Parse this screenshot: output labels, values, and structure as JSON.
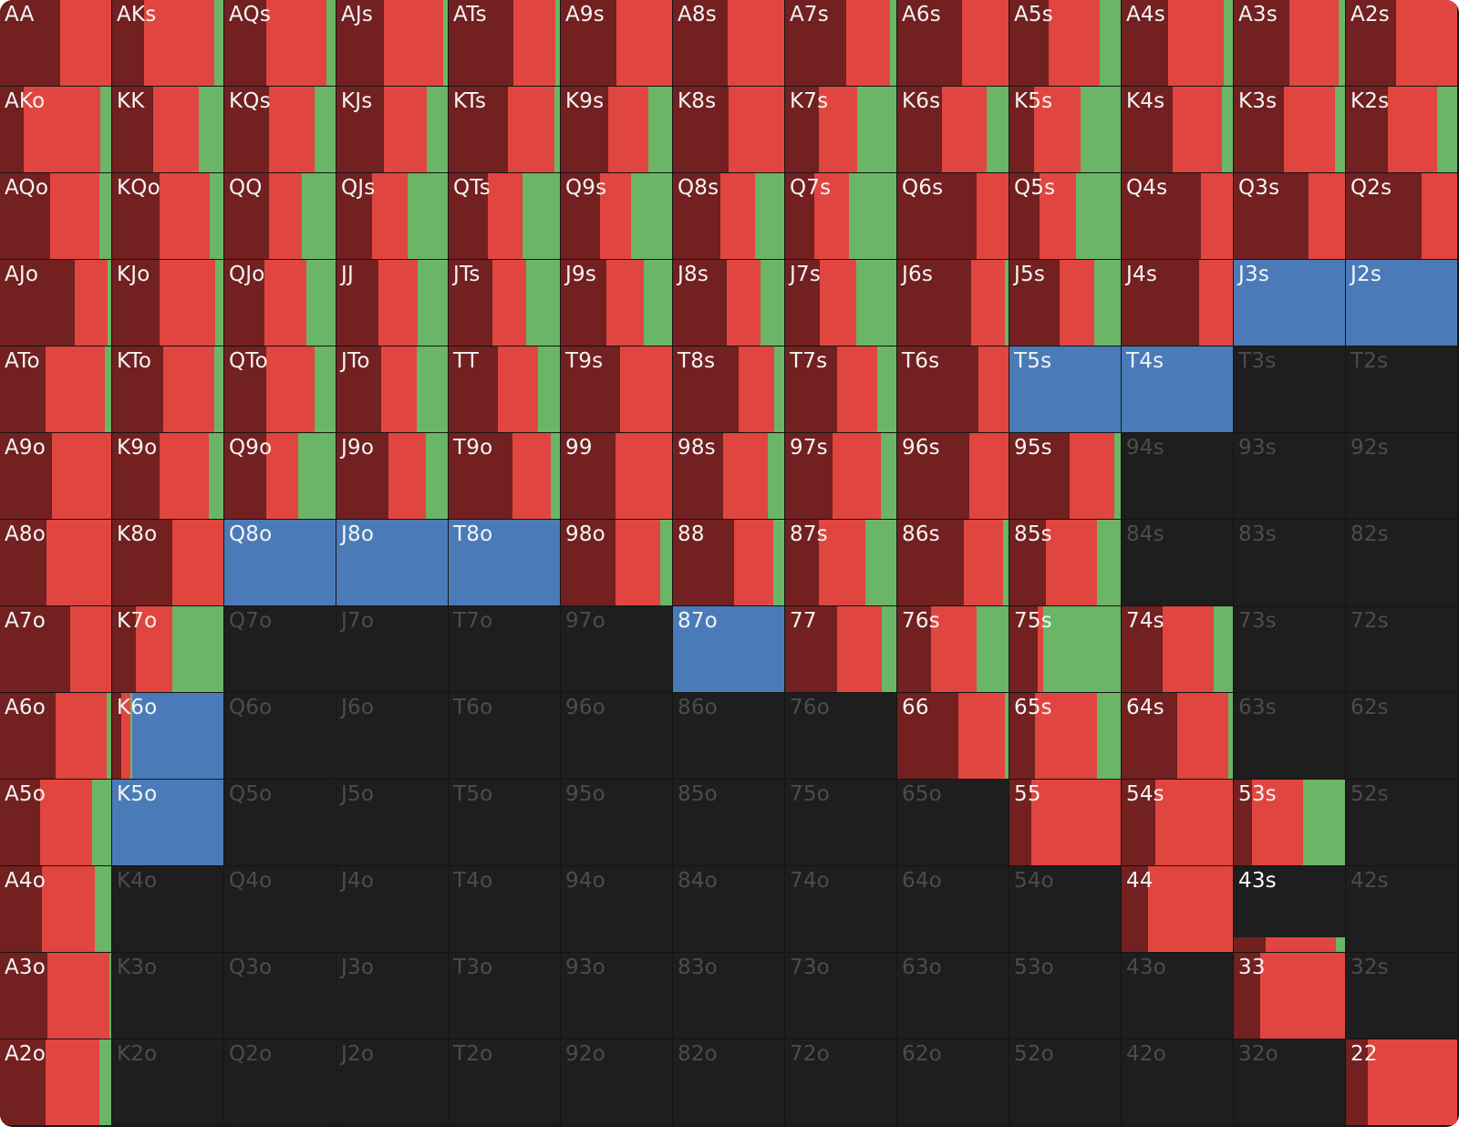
{
  "colors": {
    "fold": "#722020",
    "call": "#e0463f",
    "raise": "#6ab567",
    "selected": "#4a7bb8",
    "empty": "#1e1e1e"
  },
  "grid": {
    "rows": [
      [
        "AA",
        "AKs",
        "AQs",
        "AJs",
        "ATs",
        "A9s",
        "A8s",
        "A7s",
        "A6s",
        "A5s",
        "A4s",
        "A3s",
        "A2s"
      ],
      [
        "AKo",
        "KK",
        "KQs",
        "KJs",
        "KTs",
        "K9s",
        "K8s",
        "K7s",
        "K6s",
        "K5s",
        "K4s",
        "K3s",
        "K2s"
      ],
      [
        "AQo",
        "KQo",
        "QQ",
        "QJs",
        "QTs",
        "Q9s",
        "Q8s",
        "Q7s",
        "Q6s",
        "Q5s",
        "Q4s",
        "Q3s",
        "Q2s"
      ],
      [
        "AJo",
        "KJo",
        "QJo",
        "JJ",
        "JTs",
        "J9s",
        "J8s",
        "J7s",
        "J6s",
        "J5s",
        "J4s",
        "J3s",
        "J2s"
      ],
      [
        "ATo",
        "KTo",
        "QTo",
        "JTo",
        "TT",
        "T9s",
        "T8s",
        "T7s",
        "T6s",
        "T5s",
        "T4s",
        "T3s",
        "T2s"
      ],
      [
        "A9o",
        "K9o",
        "Q9o",
        "J9o",
        "T9o",
        "99",
        "98s",
        "97s",
        "96s",
        "95s",
        "94s",
        "93s",
        "92s"
      ],
      [
        "A8o",
        "K8o",
        "Q8o",
        "J8o",
        "T8o",
        "98o",
        "88",
        "87s",
        "86s",
        "85s",
        "84s",
        "83s",
        "82s"
      ],
      [
        "A7o",
        "K7o",
        "Q7o",
        "J7o",
        "T7o",
        "97o",
        "87o",
        "77",
        "76s",
        "75s",
        "74s",
        "73s",
        "72s"
      ],
      [
        "A6o",
        "K6o",
        "Q6o",
        "J6o",
        "T6o",
        "96o",
        "86o",
        "76o",
        "66",
        "65s",
        "64s",
        "63s",
        "62s"
      ],
      [
        "A5o",
        "K5o",
        "Q5o",
        "J5o",
        "T5o",
        "95o",
        "85o",
        "75o",
        "65o",
        "55",
        "54s",
        "53s",
        "52s"
      ],
      [
        "A4o",
        "K4o",
        "Q4o",
        "J4o",
        "T4o",
        "94o",
        "84o",
        "74o",
        "64o",
        "54o",
        "44",
        "43s",
        "42s"
      ],
      [
        "A3o",
        "K3o",
        "Q3o",
        "J3o",
        "T3o",
        "93o",
        "83o",
        "73o",
        "63o",
        "53o",
        "43o",
        "33",
        "32s"
      ],
      [
        "A2o",
        "K2o",
        "Q2o",
        "J2o",
        "T2o",
        "92o",
        "82o",
        "72o",
        "62o",
        "52o",
        "42o",
        "32o",
        "22"
      ]
    ],
    "frequencies": {
      "AA": [
        0.54,
        0.46,
        0
      ],
      "AKs": [
        0.29,
        0.63,
        0.08
      ],
      "AQs": [
        0.38,
        0.54,
        0.08
      ],
      "AJs": [
        0.43,
        0.53,
        0.04
      ],
      "ATs": [
        0.58,
        0.38,
        0.04
      ],
      "A9s": [
        0.5,
        0.5,
        0
      ],
      "A8s": [
        0.49,
        0.51,
        0
      ],
      "A7s": [
        0.55,
        0.39,
        0.06
      ],
      "A6s": [
        0.58,
        0.42,
        0
      ],
      "A5s": [
        0.35,
        0.46,
        0.19
      ],
      "A4s": [
        0.42,
        0.5,
        0.08
      ],
      "A3s": [
        0.5,
        0.44,
        0.06
      ],
      "A2s": [
        0.45,
        0.55,
        0
      ],
      "AKo": [
        0.21,
        0.69,
        0.1
      ],
      "KK": [
        0.37,
        0.41,
        0.22
      ],
      "KQs": [
        0.4,
        0.41,
        0.19
      ],
      "KJs": [
        0.43,
        0.38,
        0.19
      ],
      "KTs": [
        0.53,
        0.42,
        0.05
      ],
      "K9s": [
        0.43,
        0.36,
        0.21
      ],
      "K8s": [
        0.5,
        0.5,
        0
      ],
      "K7s": [
        0.3,
        0.35,
        0.35
      ],
      "K6s": [
        0.4,
        0.4,
        0.2
      ],
      "K5s": [
        0.22,
        0.42,
        0.36
      ],
      "K4s": [
        0.46,
        0.44,
        0.1
      ],
      "K3s": [
        0.45,
        0.46,
        0.09
      ],
      "K2s": [
        0.38,
        0.44,
        0.18
      ],
      "AQo": [
        0.45,
        0.44,
        0.11
      ],
      "KQo": [
        0.43,
        0.45,
        0.12
      ],
      "QQ": [
        0.4,
        0.3,
        0.3
      ],
      "QJs": [
        0.32,
        0.32,
        0.36
      ],
      "QTs": [
        0.35,
        0.31,
        0.34
      ],
      "Q9s": [
        0.35,
        0.28,
        0.37
      ],
      "Q8s": [
        0.43,
        0.31,
        0.26
      ],
      "Q7s": [
        0.26,
        0.31,
        0.43
      ],
      "Q6s": [
        0.71,
        0.29,
        0
      ],
      "Q5s": [
        0.27,
        0.33,
        0.4
      ],
      "Q4s": [
        0.71,
        0.29,
        0
      ],
      "Q3s": [
        0.67,
        0.33,
        0
      ],
      "Q2s": [
        0.68,
        0.32,
        0
      ],
      "AJo": [
        0.67,
        0.3,
        0.03
      ],
      "KJo": [
        0.43,
        0.5,
        0.07
      ],
      "QJo": [
        0.36,
        0.38,
        0.26
      ],
      "JJ": [
        0.38,
        0.35,
        0.27
      ],
      "JTs": [
        0.39,
        0.31,
        0.3
      ],
      "J9s": [
        0.41,
        0.34,
        0.25
      ],
      "J8s": [
        0.48,
        0.31,
        0.21
      ],
      "J7s": [
        0.31,
        0.33,
        0.36
      ],
      "J6s": [
        0.66,
        0.31,
        0.03
      ],
      "J5s": [
        0.45,
        0.31,
        0.24
      ],
      "J4s": [
        0.7,
        0.3,
        0
      ],
      "J3s": null,
      "J2s": null,
      "ATo": [
        0.41,
        0.53,
        0.06
      ],
      "KTo": [
        0.46,
        0.46,
        0.08
      ],
      "QTo": [
        0.38,
        0.43,
        0.19
      ],
      "JTo": [
        0.4,
        0.32,
        0.28
      ],
      "TT": [
        0.44,
        0.36,
        0.2
      ],
      "T9s": [
        0.53,
        0.47,
        0
      ],
      "T8s": [
        0.59,
        0.32,
        0.09
      ],
      "T7s": [
        0.47,
        0.36,
        0.17
      ],
      "T6s": [
        0.73,
        0.27,
        0
      ],
      "T5s": null,
      "T4s": null,
      "T3s": null,
      "T2s": null,
      "A9o": [
        0.47,
        0.53,
        0
      ],
      "K9o": [
        0.43,
        0.44,
        0.13
      ],
      "Q9o": [
        0.38,
        0.28,
        0.34
      ],
      "J9o": [
        0.47,
        0.33,
        0.2
      ],
      "T9o": [
        0.57,
        0.35,
        0.08
      ],
      "99": [
        0.49,
        0.51,
        0
      ],
      "98s": [
        0.45,
        0.4,
        0.15
      ],
      "97s": [
        0.43,
        0.43,
        0.14
      ],
      "96s": [
        0.65,
        0.35,
        0
      ],
      "95s": [
        0.54,
        0.4,
        0.06
      ],
      "94s": null,
      "93s": null,
      "92s": null,
      "A8o": [
        0.42,
        0.58,
        0
      ],
      "K8o": [
        0.54,
        0.46,
        0
      ],
      "Q8o": null,
      "J8o": null,
      "T8o": null,
      "98o": [
        0.49,
        0.4,
        0.11
      ],
      "88": [
        0.55,
        0.35,
        0.1
      ],
      "87s": [
        0.3,
        0.42,
        0.28
      ],
      "86s": [
        0.6,
        0.35,
        0.05
      ],
      "85s": [
        0.33,
        0.46,
        0.21
      ],
      "84s": null,
      "83s": null,
      "82s": null,
      "A7o": [
        0.63,
        0.37,
        0
      ],
      "K7o": [
        0.21,
        0.33,
        0.46
      ],
      "Q7o": null,
      "J7o": null,
      "T7o": null,
      "97o": null,
      "87o": null,
      "77": [
        0.47,
        0.4,
        0.13
      ],
      "76s": [
        0.3,
        0.41,
        0.29
      ],
      "75s": [
        0.25,
        0.05,
        0.7
      ],
      "74s": [
        0.37,
        0.46,
        0.17
      ],
      "73s": null,
      "72s": null,
      "A6o": [
        0.5,
        0.46,
        0.04
      ],
      "K6o": null,
      "Q6o": null,
      "J6o": null,
      "T6o": null,
      "96o": null,
      "86o": null,
      "76o": null,
      "66": [
        0.55,
        0.42,
        0.03
      ],
      "65s": [
        0.23,
        0.56,
        0.21
      ],
      "64s": [
        0.5,
        0.46,
        0.04
      ],
      "63s": null,
      "62s": null,
      "A5o": [
        0.36,
        0.47,
        0.17
      ],
      "K5o": null,
      "Q5o": null,
      "J5o": null,
      "T5o": null,
      "95o": null,
      "85o": null,
      "75o": null,
      "65o": null,
      "55": [
        0.2,
        0.8,
        0
      ],
      "54s": [
        0.3,
        0.7,
        0
      ],
      "53s": [
        0.16,
        0.46,
        0.38
      ],
      "52s": null,
      "A4o": [
        0.38,
        0.47,
        0.15
      ],
      "K4o": null,
      "Q4o": null,
      "J4o": null,
      "T4o": null,
      "94o": null,
      "84o": null,
      "74o": null,
      "64o": null,
      "54o": null,
      "44": [
        0.24,
        0.76,
        0
      ],
      "43s": "bottom",
      "42s": null,
      "A3o": [
        0.43,
        0.55,
        0.02
      ],
      "K3o": null,
      "Q3o": null,
      "J3o": null,
      "T3o": null,
      "93o": null,
      "83o": null,
      "73o": null,
      "63o": null,
      "53o": null,
      "43o": null,
      "33": [
        0.24,
        0.76,
        0
      ],
      "32s": null,
      "A2o": [
        0.41,
        0.48,
        0.11
      ],
      "K2o": null,
      "Q2o": null,
      "J2o": null,
      "T2o": null,
      "92o": null,
      "82o": null,
      "72o": null,
      "62o": null,
      "52o": null,
      "42o": null,
      "32o": null,
      "22": [
        0.2,
        0.8,
        0
      ]
    },
    "bottom_bar": {
      "43s": [
        0.29,
        0.63,
        0.08
      ]
    },
    "selected": [
      "J3s",
      "J2s",
      "T5s",
      "T4s",
      "Q8o",
      "J8o",
      "T8o",
      "87o",
      "K5o"
    ],
    "selected_partial": {
      "K6o": [
        0.08,
        0.08,
        0.02
      ]
    }
  }
}
